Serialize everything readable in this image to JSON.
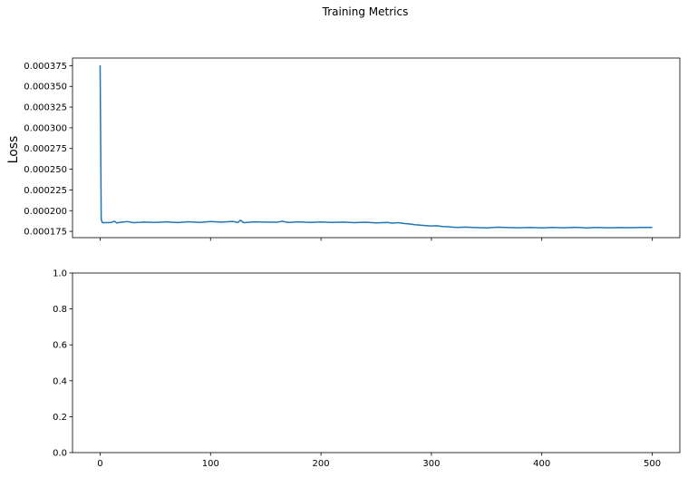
{
  "figure": {
    "title": "Training Metrics"
  },
  "chart_data": [
    {
      "type": "line",
      "title": "",
      "xlabel": "",
      "ylabel": "Loss",
      "xlim": [
        -25,
        525
      ],
      "ylim": [
        0.00016743,
        0.00038421
      ],
      "xticks": [
        0,
        100,
        200,
        300,
        400,
        500
      ],
      "show_xtick_labels": false,
      "yticks": [
        0.000175,
        0.0002,
        0.000225,
        0.00025,
        0.000275,
        0.0003,
        0.000325,
        0.00035,
        0.000375
      ],
      "ytick_labels": [
        "0.000175",
        "0.000200",
        "0.000225",
        "0.000250",
        "0.000275",
        "0.000300",
        "0.000325",
        "0.000350",
        "0.000375"
      ],
      "color": "#1f77b4",
      "grid": false,
      "series": [
        {
          "x": [
            0,
            1,
            2,
            5,
            10,
            13,
            15,
            20,
            25,
            30,
            40,
            50,
            60,
            70,
            80,
            90,
            100,
            110,
            120,
            125,
            127,
            130,
            140,
            150,
            160,
            165,
            170,
            180,
            190,
            200,
            210,
            220,
            230,
            240,
            250,
            260,
            265,
            270,
            275,
            280,
            285,
            290,
            295,
            300,
            305,
            310,
            315,
            320,
            325,
            330,
            340,
            350,
            360,
            370,
            380,
            390,
            400,
            410,
            420,
            430,
            440,
            450,
            460,
            470,
            480,
            490,
            500
          ],
          "y": [
            0.0003755,
            0.0001895,
            0.0001855,
            0.0001855,
            0.0001858,
            0.0001872,
            0.0001852,
            0.0001862,
            0.0001868,
            0.0001855,
            0.0001862,
            0.0001858,
            0.0001864,
            0.0001856,
            0.0001866,
            0.0001858,
            0.0001868,
            0.0001862,
            0.000187,
            0.0001858,
            0.0001885,
            0.0001855,
            0.0001865,
            0.0001862,
            0.000186,
            0.0001872,
            0.0001858,
            0.0001864,
            0.0001858,
            0.0001863,
            0.0001857,
            0.0001862,
            0.0001855,
            0.000186,
            0.0001852,
            0.0001858,
            0.000185,
            0.0001855,
            0.0001845,
            0.000184,
            0.000183,
            0.0001825,
            0.000182,
            0.0001815,
            0.0001818,
            0.0001808,
            0.0001805,
            0.00018,
            0.0001798,
            0.0001802,
            0.0001796,
            0.0001792,
            0.00018,
            0.0001796,
            0.0001794,
            0.0001798,
            0.0001792,
            0.0001797,
            0.0001794,
            0.0001799,
            0.0001792,
            0.0001797,
            0.0001794,
            0.0001796,
            0.0001795,
            0.0001797,
            0.0001798
          ]
        }
      ]
    },
    {
      "type": "line",
      "title": "",
      "xlabel": "",
      "ylabel": "",
      "xlim": [
        -25,
        525
      ],
      "ylim": [
        0,
        1
      ],
      "xticks": [
        0,
        100,
        200,
        300,
        400,
        500
      ],
      "xtick_labels": [
        "0",
        "100",
        "200",
        "300",
        "400",
        "500"
      ],
      "show_xtick_labels": true,
      "yticks": [
        0,
        0.2,
        0.4,
        0.6,
        0.8,
        1
      ],
      "ytick_labels": [
        "0.0",
        "0.2",
        "0.4",
        "0.6",
        "0.8",
        "1.0"
      ],
      "grid": false,
      "series": []
    }
  ]
}
